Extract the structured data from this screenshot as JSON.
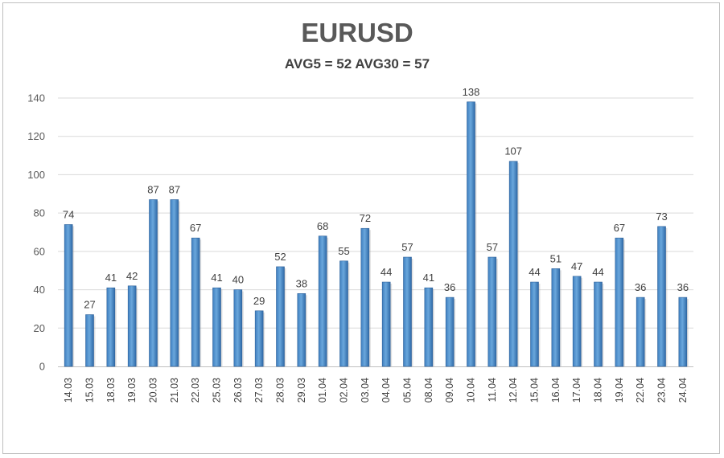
{
  "chart_data": {
    "type": "bar",
    "title": "EURUSD",
    "subtitle": "AVG5 = 52 AVG30 = 57",
    "xlabel": "",
    "ylabel": "",
    "ylim": [
      0,
      140
    ],
    "yticks": [
      0,
      20,
      40,
      60,
      80,
      100,
      120,
      140
    ],
    "grid": true,
    "bar_color": "#5b9bd5",
    "categories": [
      "14.03",
      "15.03",
      "18.03",
      "19.03",
      "20.03",
      "21.03",
      "22.03",
      "25.03",
      "26.03",
      "27.03",
      "28.03",
      "29.03",
      "01.04",
      "02.04",
      "03.04",
      "04.04",
      "05.04",
      "08.04",
      "09.04",
      "10.04",
      "11.04",
      "12.04",
      "15.04",
      "16.04",
      "17.04",
      "18.04",
      "19.04",
      "22.04",
      "23.04",
      "24.04"
    ],
    "values": [
      74,
      27,
      41,
      42,
      87,
      87,
      67,
      41,
      40,
      29,
      52,
      38,
      68,
      55,
      72,
      44,
      57,
      41,
      36,
      138,
      57,
      107,
      44,
      51,
      47,
      44,
      67,
      36,
      73,
      36
    ]
  }
}
